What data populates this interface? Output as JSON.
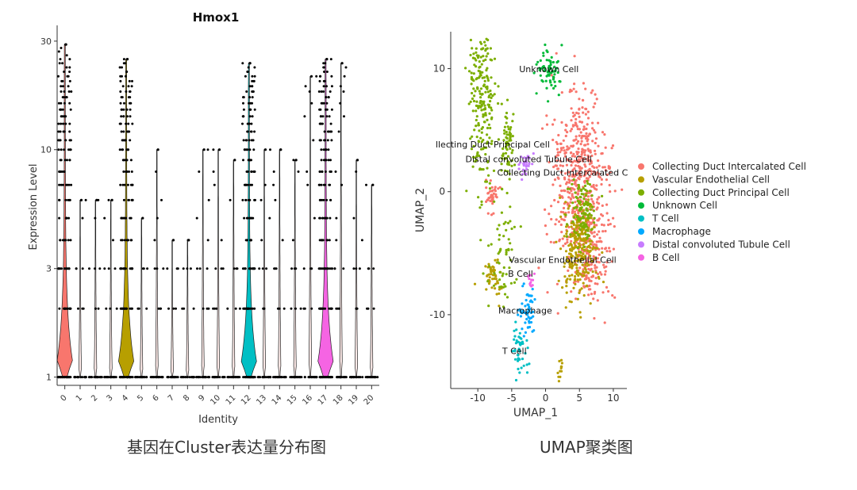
{
  "chart_data": [
    {
      "type": "violin",
      "title": "Hmox1",
      "xlabel": "Identity",
      "ylabel": "Expression Level",
      "y_scale": "log",
      "y_ticks": [
        1,
        3,
        10,
        30
      ],
      "y_tick_labels": [
        "1",
        "3",
        "10",
        "30"
      ],
      "categories": [
        "0",
        "1",
        "2",
        "3",
        "4",
        "5",
        "6",
        "7",
        "8",
        "9",
        "10",
        "11",
        "12",
        "13",
        "14",
        "15",
        "16",
        "17",
        "18",
        "19",
        "20"
      ],
      "max_values": [
        29,
        6,
        6,
        6,
        25,
        5,
        10,
        4,
        4,
        10,
        10,
        9,
        24,
        10,
        10,
        9,
        21,
        25,
        24,
        9,
        7
      ],
      "highlighted": [
        {
          "category": "0",
          "color": "#F8766D"
        },
        {
          "category": "4",
          "color": "#B79F00"
        },
        {
          "category": "12",
          "color": "#00BFC4"
        },
        {
          "category": "17",
          "color": "#F564E3"
        }
      ],
      "caption": "基因在Cluster表达量分布图"
    },
    {
      "type": "scatter",
      "xlabel": "UMAP_1",
      "ylabel": "UMAP_2",
      "xlim": [
        -14,
        12
      ],
      "ylim": [
        -16,
        13
      ],
      "x_ticks": [
        -10,
        -5,
        0,
        5,
        10
      ],
      "y_ticks": [
        -10,
        0,
        10
      ],
      "legend_position": "right",
      "series": [
        {
          "name": "Collecting Duct Intercalated Cell",
          "color": "#F8766D"
        },
        {
          "name": "Vascular Endothelial Cell",
          "color": "#B79F00"
        },
        {
          "name": "Collecting Duct Principal Cell",
          "color": "#7CAE00"
        },
        {
          "name": "Unknown Cell",
          "color": "#00BA38"
        },
        {
          "name": "T Cell",
          "color": "#00BFC4"
        },
        {
          "name": "Macrophage",
          "color": "#00A9FF"
        },
        {
          "name": "Distal convoluted Tubule Cell",
          "color": "#C77CFF"
        },
        {
          "name": "B Cell",
          "color": "#F564E3"
        }
      ],
      "annotations": [
        {
          "text": "Unknown Cell",
          "x": 0.5,
          "y": 9.7
        },
        {
          "text": "llecting Duct Principal Cell",
          "x": -7.8,
          "y": 3.6
        },
        {
          "text": "Distal convoluted Tubule Cell",
          "x": -2.5,
          "y": 2.4
        },
        {
          "text": "Collecting Duct Intercalated C",
          "x": 2.5,
          "y": 1.3
        },
        {
          "text": "Vascular Endothelial Cell",
          "x": 2.5,
          "y": -5.8
        },
        {
          "text": "B Cell",
          "x": -3.7,
          "y": -6.9
        },
        {
          "text": "Macrophage",
          "x": -3.0,
          "y": -9.9
        },
        {
          "text": "T Cell",
          "x": -4.6,
          "y": -13.2
        }
      ],
      "caption": "UMAP聚类图"
    }
  ]
}
